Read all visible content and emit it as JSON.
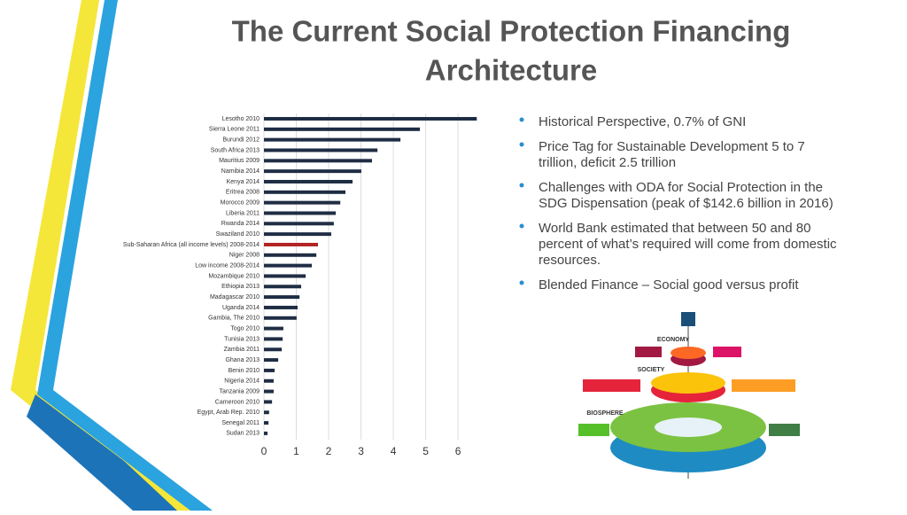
{
  "header": {
    "title_lines": [
      "The Current Social Protection Financing",
      "Architecture"
    ]
  },
  "bullets": [
    [
      "Historical Perspective, 0.7% of GNI"
    ],
    [
      "Price Tag for Sustainable Development 5 to 7",
      "trillion, deficit 2.5 trillion"
    ],
    [
      "Challenges with ODA for Social Protection in the",
      "SDG Dispensation (peak of $142.6 billion in 2016)"
    ],
    [
      " World Bank estimated that between 50 and 80",
      "percent of what’s required will come from domestic",
      "resources."
    ],
    [
      "Blended Finance – Social good versus profit"
    ]
  ],
  "graphic": {
    "labels": [
      "ECONOMY",
      "SOCIETY",
      "BIOSPHERE"
    ]
  },
  "chart_data": {
    "type": "hbar",
    "categories": [
      "Lesotho 2010",
      "Sierra Leone 2011",
      "Burundi 2012",
      "South Africa 2013",
      "Mauritius 2009",
      "Namibia 2014",
      "Kenya 2014",
      "Eritrea 2008",
      "Morocco 2009",
      "Liberia 2011",
      "Rwanda 2014",
      "Swaziland 2010",
      "Sub-Saharan Africa (all income levels) 2008-2014",
      "Niger 2008",
      "Low income 2008-2014",
      "Mozambique 2010",
      "Ethiopia 2013",
      "Madagascar 2010",
      "Uganda 2014",
      "Gambia, The 2010",
      "Togo 2010",
      "Tunisia 2013",
      "Zambia 2011",
      "Ghana 2013",
      "Benin 2010",
      "Nigeria 2014",
      "Tanzania 2009",
      "Cameroon 2010",
      "Egypt, Arab Rep. 2010",
      "Senegal 2011",
      "Sudan 2013"
    ],
    "values": [
      6.58,
      4.82,
      4.22,
      3.51,
      3.34,
      3.01,
      2.74,
      2.52,
      2.36,
      2.22,
      2.16,
      2.08,
      1.67,
      1.62,
      1.48,
      1.29,
      1.15,
      1.1,
      1.04,
      1.01,
      0.6,
      0.58,
      0.55,
      0.44,
      0.33,
      0.3,
      0.3,
      0.25,
      0.16,
      0.14,
      0.11
    ],
    "color": "#1f2d44",
    "highlight_color": "#b22222",
    "highlight_index": 12,
    "xlim": [
      0,
      6.6
    ],
    "xticks": [
      0,
      1,
      2,
      3,
      4,
      5,
      6
    ],
    "grid": true
  }
}
